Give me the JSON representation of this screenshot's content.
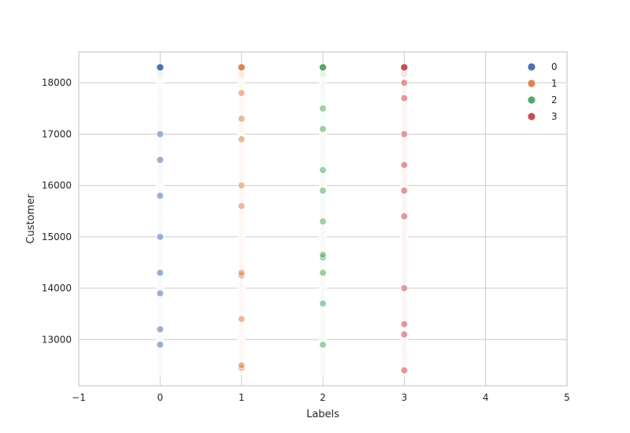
{
  "chart_data": {
    "type": "scatter",
    "title": "",
    "xlabel": "Labels",
    "ylabel": "Customer",
    "xlim": [
      -1,
      5
    ],
    "ylim": [
      12100,
      18600
    ],
    "x_ticks": [
      -1,
      0,
      1,
      2,
      3,
      4,
      5
    ],
    "y_ticks": [
      13000,
      14000,
      15000,
      16000,
      17000,
      18000
    ],
    "grid": true,
    "legend_position": "top-right",
    "y_range": [
      12350,
      18300
    ],
    "series": [
      {
        "name": "0",
        "x": 0,
        "color": "#4c72b0",
        "faint": "#eef2f8",
        "y_min": 12350,
        "y_max": 18300,
        "dense_y": [
          12900,
          13200,
          13900,
          14300,
          15000,
          15800,
          16500,
          17000
        ]
      },
      {
        "name": "1",
        "x": 1,
        "color": "#dd8452",
        "faint": "#fbece3",
        "y_min": 12400,
        "y_max": 18300,
        "dense_y": [
          12450,
          12500,
          13400,
          14250,
          14300,
          15600,
          16000,
          16900,
          17300,
          17800
        ]
      },
      {
        "name": "2",
        "x": 2,
        "color": "#55a868",
        "faint": "#e8f3ea",
        "y_min": 12350,
        "y_max": 18300,
        "dense_y": [
          12900,
          13700,
          14300,
          14600,
          14650,
          15300,
          15900,
          16300,
          17100,
          17500
        ]
      },
      {
        "name": "3",
        "x": 3,
        "color": "#c44e52",
        "faint": "#f7e4e4",
        "y_min": 12350,
        "y_max": 18300,
        "dense_y": [
          12400,
          13100,
          13300,
          14000,
          15400,
          15900,
          16400,
          17000,
          17700,
          18000
        ]
      }
    ]
  }
}
